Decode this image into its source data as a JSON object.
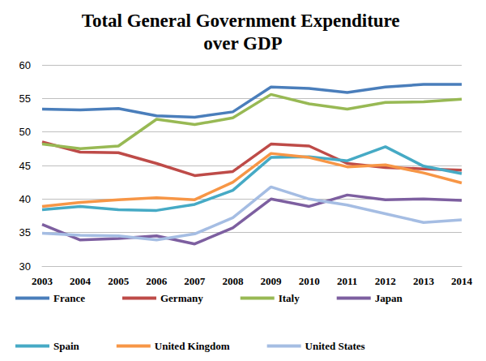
{
  "chart_data": {
    "type": "line",
    "title": "Total General Government Expenditure over GDP",
    "categories": [
      "2003",
      "2004",
      "2005",
      "2006",
      "2007",
      "2008",
      "2009",
      "2010",
      "2011",
      "2012",
      "2013",
      "2014"
    ],
    "series": [
      {
        "name": "France",
        "color": "#4a7ebb",
        "values": [
          53.4,
          53.3,
          53.5,
          52.4,
          52.2,
          53.0,
          56.7,
          56.5,
          55.9,
          56.7,
          57.1,
          57.1
        ]
      },
      {
        "name": "Germany",
        "color": "#be4b48",
        "values": [
          48.5,
          47.0,
          46.9,
          45.3,
          43.5,
          44.1,
          48.2,
          47.9,
          45.3,
          44.7,
          44.5,
          44.3
        ]
      },
      {
        "name": "Italy",
        "color": "#98b954",
        "values": [
          48.2,
          47.5,
          47.9,
          51.9,
          51.1,
          52.1,
          55.6,
          54.2,
          53.4,
          54.4,
          54.5,
          54.9
        ]
      },
      {
        "name": "Japan",
        "color": "#7d5fa0",
        "values": [
          36.2,
          33.9,
          34.1,
          34.5,
          33.3,
          35.7,
          40.0,
          38.9,
          40.6,
          39.9,
          40.0,
          39.8
        ]
      },
      {
        "name": "Spain",
        "color": "#46aac5",
        "values": [
          38.4,
          38.9,
          38.4,
          38.3,
          39.2,
          41.3,
          46.2,
          46.3,
          45.7,
          47.8,
          44.9,
          43.8
        ]
      },
      {
        "name": "United Kingdom",
        "color": "#f79646",
        "values": [
          38.9,
          39.5,
          39.9,
          40.2,
          39.9,
          42.5,
          46.8,
          46.2,
          44.8,
          45.1,
          43.9,
          42.4
        ]
      },
      {
        "name": "United States",
        "color": "#a5bde3",
        "values": [
          34.9,
          34.6,
          34.5,
          33.9,
          34.8,
          37.2,
          41.8,
          40.0,
          39.1,
          37.8,
          36.5,
          36.9
        ]
      }
    ],
    "ylim": [
      30,
      60
    ],
    "yticks": [
      30,
      35,
      40,
      45,
      50,
      55,
      60
    ],
    "grid": true,
    "legend": "bottom",
    "marker": "none",
    "line_style": "solid"
  }
}
